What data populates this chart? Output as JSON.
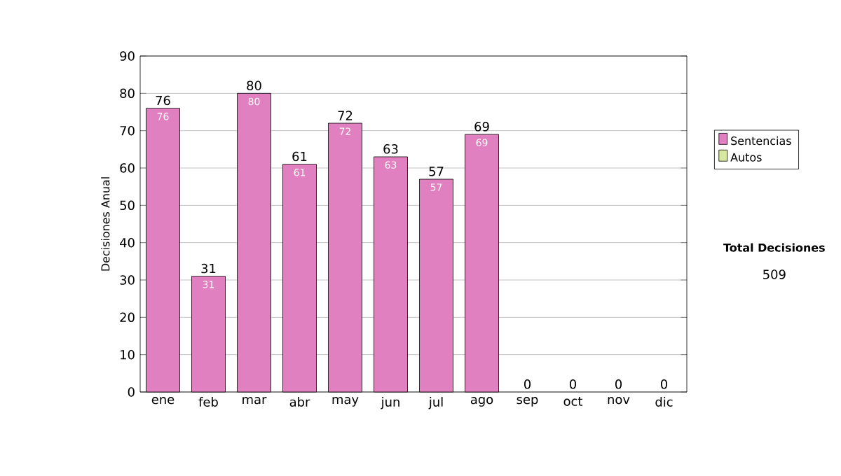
{
  "chart_data": {
    "type": "bar",
    "stacked": true,
    "ylabel": "Decisiones Anual",
    "categories": [
      "ene",
      "feb",
      "mar",
      "abr",
      "may",
      "jun",
      "jul",
      "ago",
      "sep",
      "oct",
      "nov",
      "dic"
    ],
    "series": [
      {
        "name": "Sentencias",
        "color": "#e080c0",
        "values": [
          76,
          31,
          80,
          61,
          72,
          63,
          57,
          69,
          0,
          0,
          0,
          0
        ],
        "value_labels": [
          "76",
          "31",
          "80",
          "61",
          "72",
          "63",
          "57",
          "69",
          null,
          null,
          null,
          null
        ]
      },
      {
        "name": "Autos",
        "color": "#d8e8a0",
        "values": [
          0,
          0,
          0,
          0,
          0,
          0,
          0,
          0,
          0,
          0,
          0,
          0
        ]
      }
    ],
    "totals": [
      "76",
      "31",
      "80",
      "61",
      "72",
      "63",
      "57",
      "69",
      "0",
      "0",
      "0",
      "0"
    ],
    "ylim": [
      0,
      90
    ],
    "yticks": [
      0,
      10,
      20,
      30,
      40,
      50,
      60,
      70,
      80,
      90
    ],
    "grid": "y",
    "legend": "right",
    "annotations": [
      "Total Decisiones",
      "509"
    ]
  }
}
